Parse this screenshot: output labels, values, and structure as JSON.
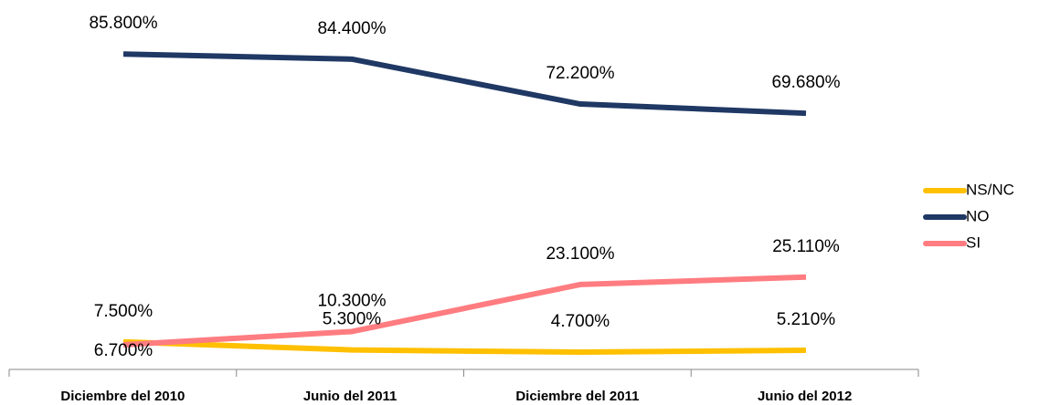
{
  "chart_data": {
    "type": "line",
    "categories": [
      "Diciembre del 2010",
      "Junio del 2011",
      "Diciembre del 2011",
      "Junio del 2012"
    ],
    "series": [
      {
        "name": "NS/NC",
        "color": "#ffc000",
        "values": [
          7.5,
          5.3,
          4.7,
          5.21
        ],
        "value_labels": [
          "7.500%",
          "5.300%",
          "4.700%",
          "5.210%"
        ]
      },
      {
        "name": "NO",
        "color": "#1f3864",
        "values": [
          85.8,
          84.4,
          72.2,
          69.68
        ],
        "value_labels": [
          "85.800%",
          "84.400%",
          "72.200%",
          "69.680%"
        ]
      },
      {
        "name": "SI",
        "color": "#ff7c80",
        "values": [
          6.7,
          10.3,
          23.1,
          25.11
        ],
        "value_labels": [
          "6.700%",
          "10.300%",
          "23.100%",
          "25.110%"
        ]
      }
    ],
    "ylim": [
      0,
      100
    ],
    "legend": "right"
  }
}
